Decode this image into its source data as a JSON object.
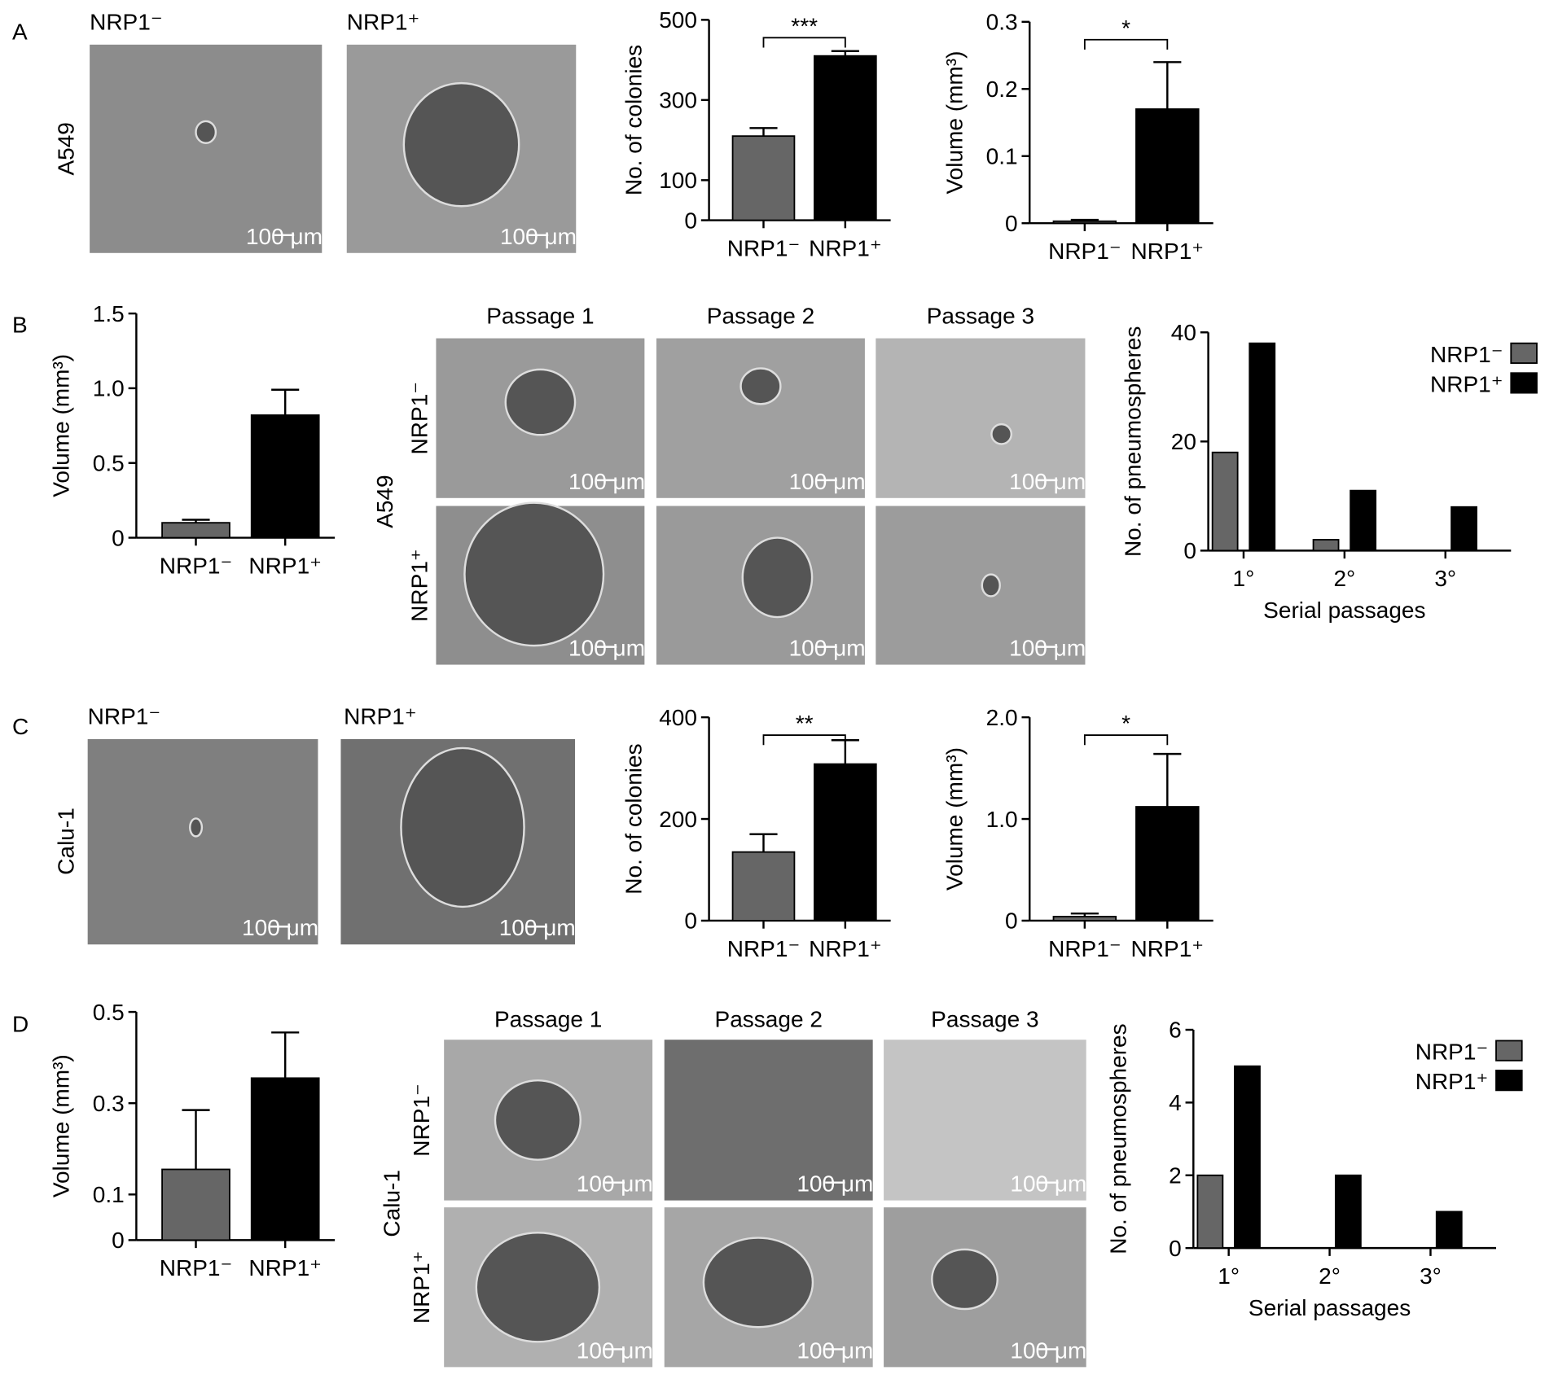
{
  "figure": {
    "panel_labels": [
      "A",
      "B",
      "C",
      "D"
    ],
    "scale_bar": "100 μm",
    "a": {
      "col_labels": [
        "NRP1⁻",
        "NRP1⁺"
      ],
      "row_label": "A549"
    },
    "b": {
      "col_labels": [
        "Passage 1",
        "Passage 2",
        "Passage 3"
      ],
      "row_group": "A549",
      "row_labels": [
        "NRP1⁻",
        "NRP1⁺"
      ]
    },
    "c": {
      "col_labels": [
        "NRP1⁻",
        "NRP1⁺"
      ],
      "row_label": "Calu-1"
    },
    "d": {
      "col_labels": [
        "Passage 1",
        "Passage 2",
        "Passage 3"
      ],
      "row_group": "Calu-1",
      "row_labels": [
        "NRP1⁻",
        "NRP1⁺"
      ]
    }
  },
  "chart_data": [
    {
      "type": "bar",
      "ylabel": "No. of colonies",
      "categories": [
        "NRP1⁻",
        "NRP1⁺"
      ],
      "values": [
        210,
        410
      ],
      "errors": [
        20,
        12
      ],
      "colors": [
        "#666666",
        "#000000"
      ],
      "ylim": [
        0,
        500
      ],
      "yticks": [
        0,
        100,
        300,
        500
      ],
      "significance": "***"
    },
    {
      "type": "bar",
      "ylabel": "Volume (mm³)",
      "categories": [
        "NRP1⁻",
        "NRP1⁺"
      ],
      "values": [
        0.003,
        0.17
      ],
      "errors": [
        0.002,
        0.07
      ],
      "colors": [
        "#666666",
        "#000000"
      ],
      "ylim": [
        0,
        0.3
      ],
      "yticks": [
        0,
        0.1,
        0.2,
        0.3
      ],
      "significance": "*"
    },
    {
      "type": "bar",
      "ylabel": "Volume (mm³)",
      "categories": [
        "NRP1⁻",
        "NRP1⁺"
      ],
      "values": [
        0.1,
        0.82
      ],
      "errors": [
        0.02,
        0.17
      ],
      "colors": [
        "#666666",
        "#000000"
      ],
      "ylim": [
        0,
        1.5
      ],
      "yticks": [
        0,
        0.5,
        {
          "value": 1,
          "label": "1.0"
        },
        1.5
      ]
    },
    {
      "type": "grouped_bar",
      "ylabel": "No. of pneumospheres",
      "xlabel": "Serial passages",
      "categories": [
        "1°",
        "2°",
        "3°"
      ],
      "series": [
        {
          "name": "NRP1⁻",
          "color": "#666666",
          "values": [
            18,
            2,
            0
          ]
        },
        {
          "name": "NRP1⁺",
          "color": "#000000",
          "values": [
            38,
            11,
            8
          ]
        }
      ],
      "ylim": [
        0,
        40
      ],
      "yticks": [
        0,
        20,
        40
      ],
      "legend": "upper right"
    },
    {
      "type": "bar",
      "ylabel": "No. of colonies",
      "categories": [
        "NRP1⁻",
        "NRP1⁺"
      ],
      "values": [
        135,
        308
      ],
      "errors": [
        35,
        47
      ],
      "colors": [
        "#666666",
        "#000000"
      ],
      "ylim": [
        0,
        400
      ],
      "yticks": [
        0,
        200,
        400
      ],
      "significance": "**"
    },
    {
      "type": "bar",
      "ylabel": "Volume (mm³)",
      "categories": [
        "NRP1⁻",
        "NRP1⁺"
      ],
      "values": [
        0.04,
        1.12
      ],
      "errors": [
        0.03,
        0.52
      ],
      "colors": [
        "#666666",
        "#000000"
      ],
      "ylim": [
        0,
        2
      ],
      "yticks": [
        0,
        {
          "value": 1,
          "label": "1.0"
        },
        {
          "value": 2,
          "label": "2.0"
        }
      ],
      "significance": "*"
    },
    {
      "type": "bar",
      "ylabel": "Volume (mm³)",
      "categories": [
        "NRP1⁻",
        "NRP1⁺"
      ],
      "values": [
        0.155,
        0.355
      ],
      "errors": [
        0.13,
        0.1
      ],
      "colors": [
        "#666666",
        "#000000"
      ],
      "ylim": [
        0,
        0.5
      ],
      "yticks": [
        0,
        0.1,
        0.3,
        0.5
      ]
    },
    {
      "type": "grouped_bar",
      "ylabel": "No. of pneumospheres",
      "xlabel": "Serial passages",
      "categories": [
        "1°",
        "2°",
        "3°"
      ],
      "series": [
        {
          "name": "NRP1⁻",
          "color": "#666666",
          "values": [
            2,
            0,
            0
          ]
        },
        {
          "name": "NRP1⁺",
          "color": "#000000",
          "values": [
            5,
            2,
            1
          ]
        }
      ],
      "ylim": [
        0,
        6
      ],
      "yticks": [
        0,
        2,
        4,
        6
      ],
      "legend": "upper right"
    }
  ]
}
